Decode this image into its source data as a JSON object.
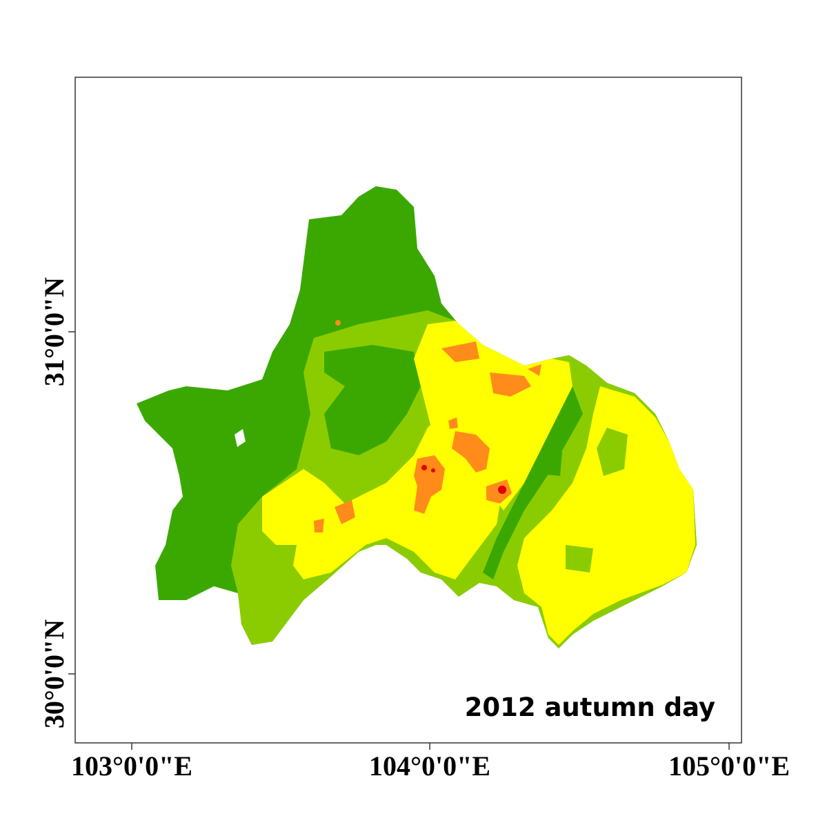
{
  "map": {
    "title": "2012 autumn day",
    "x_labels": [
      "103°0'0\"E",
      "104°0'0\"E",
      "105°0'0\"E"
    ],
    "y_labels": [
      "31°0'0\"N",
      "30°0'0\"N"
    ]
  }
}
